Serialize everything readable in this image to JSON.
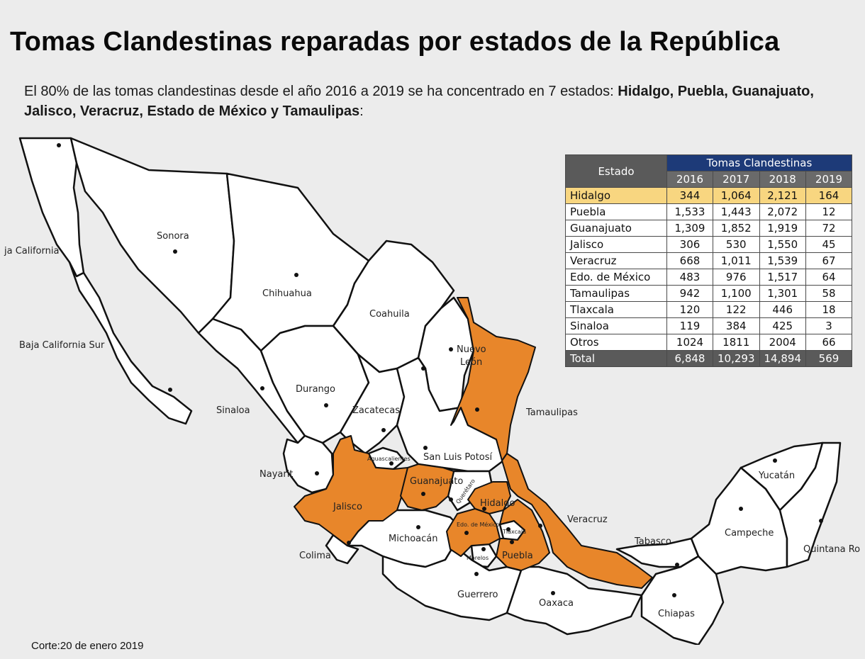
{
  "title": "Tomas Clandestinas reparadas por estados de la República",
  "subtitle": {
    "prefix": "El 80% de las tomas clandestinas desde el año 2016 a 2019 se ha concentrado en 7 estados: ",
    "bold": "Hidalgo, Puebla, Guanajuato, Jalisco, Veracruz, Estado de México y Tamaulipas",
    "suffix": ":"
  },
  "colors": {
    "highlighted_state": "#e8862a",
    "state_fill": "#ffffff",
    "border": "#111111",
    "table_header": "#1d3a78",
    "row_highlight": "#f8d680"
  },
  "map": {
    "labels": {
      "baja_california": "ja California",
      "sonora": "Sonora",
      "chihuahua": "Chihuahua",
      "coahuila": "Coahuila",
      "baja_california_sur": "Baja California Sur",
      "nuevo_leon_1": "Nuevo",
      "nuevo_leon_2": "León",
      "sinaloa": "Sinaloa",
      "durango": "Durango",
      "zacatecas": "Zacatecas",
      "tamaulipas": "Tamaulipas",
      "aguascalientes": "Aguascalientes",
      "san_luis_potosi": "San Luis Potosí",
      "nayarit": "Nayarit",
      "guanajuato": "Guanajuato",
      "queretaro": "Querétaro",
      "jalisco": "Jalisco",
      "hidalgo": "Hidalgo",
      "yucatan": "Yucatán",
      "veracruz": "Veracruz",
      "edo_mexico": "Edo. de México",
      "tlaxcala": "Tlaxcala",
      "campeche": "Campeche",
      "michoacan": "Michoacán",
      "tabasco": "Tabasco",
      "colima": "Colima",
      "morelos": "Morelos",
      "puebla": "Puebla",
      "quintana_roo": "Quintana Ro",
      "guerrero": "Guerrero",
      "oaxaca": "Oaxaca",
      "chiapas": "Chiapas"
    }
  },
  "table": {
    "estado_header": "Estado",
    "group_header": "Tomas Clandestinas",
    "years": [
      "2016",
      "2017",
      "2018",
      "2019"
    ],
    "rows": [
      {
        "estado": "Hidalgo",
        "values": [
          "344",
          "1,064",
          "2,121",
          "164"
        ]
      },
      {
        "estado": "Puebla",
        "values": [
          "1,533",
          "1,443",
          "2,072",
          "12"
        ]
      },
      {
        "estado": "Guanajuato",
        "values": [
          "1,309",
          "1,852",
          "1,919",
          "72"
        ]
      },
      {
        "estado": "Jalisco",
        "values": [
          "306",
          "530",
          "1,550",
          "45"
        ]
      },
      {
        "estado": "Veracruz",
        "values": [
          "668",
          "1,011",
          "1,539",
          "67"
        ]
      },
      {
        "estado": "Edo. de México",
        "values": [
          "483",
          "976",
          "1,517",
          "64"
        ]
      },
      {
        "estado": "Tamaulipas",
        "values": [
          "942",
          "1,100",
          "1,301",
          "58"
        ]
      },
      {
        "estado": "Tlaxcala",
        "values": [
          "120",
          "122",
          "446",
          "18"
        ]
      },
      {
        "estado": "Sinaloa",
        "values": [
          "119",
          "384",
          "425",
          "3"
        ]
      },
      {
        "estado": "Otros",
        "values": [
          "1024",
          "1811",
          "2004",
          "66"
        ]
      }
    ],
    "total": {
      "estado": "Total",
      "values": [
        "6,848",
        "10,293",
        "14,894",
        "569"
      ]
    }
  },
  "footnote": "Corte:20 de enero 2019"
}
